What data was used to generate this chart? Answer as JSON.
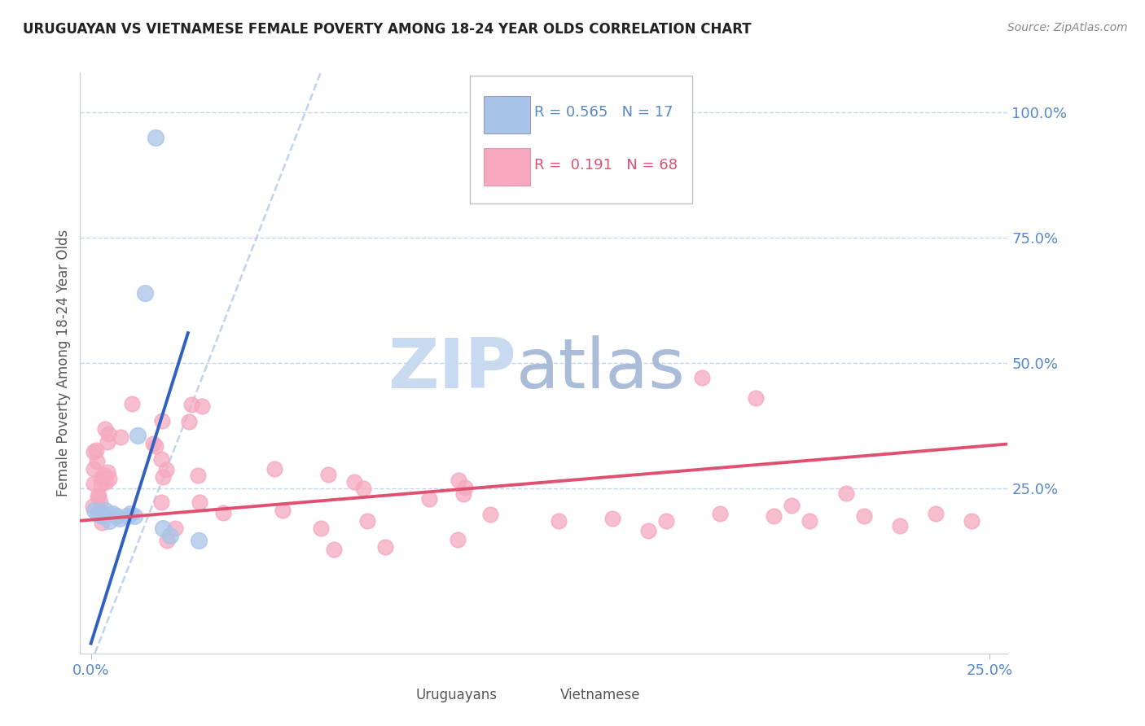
{
  "title": "URUGUAYAN VS VIETNAMESE FEMALE POVERTY AMONG 18-24 YEAR OLDS CORRELATION CHART",
  "source": "Source: ZipAtlas.com",
  "ylabel": "Female Poverty Among 18-24 Year Olds",
  "xlim": [
    0.0,
    0.25
  ],
  "ylim": [
    0.0,
    1.0
  ],
  "uruguayan_R": 0.565,
  "uruguayan_N": 17,
  "vietnamese_R": 0.191,
  "vietnamese_N": 68,
  "uruguayan_color": "#a8c4e8",
  "vietnamese_color": "#f5a8bf",
  "regression_uruguayan_color": "#3060c0",
  "regression_vietnamese_color": "#e05070",
  "dashed_color": "#b0c8e8",
  "background_color": "#ffffff",
  "grid_color": "#c8d4e8",
  "axis_label_color": "#5588cc",
  "title_color": "#222222",
  "source_color": "#888888",
  "watermark_zip_color": "#c8daf0",
  "watermark_atlas_color": "#aabcd8"
}
